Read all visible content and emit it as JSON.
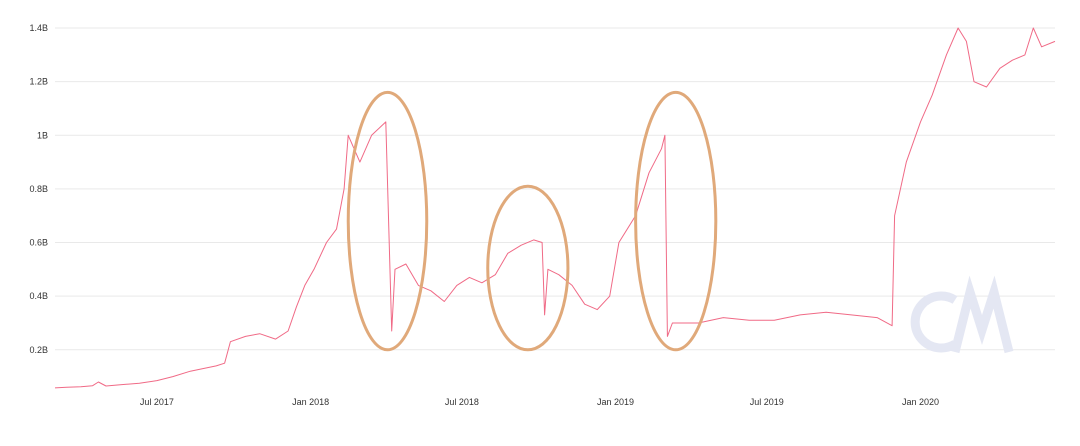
{
  "chart_data": {
    "type": "line",
    "title": "",
    "xlabel": "",
    "ylabel": "",
    "y_unit": "B",
    "ylim": [
      0.05,
      1.43
    ],
    "xlim": [
      "2017-03-01",
      "2020-06-10"
    ],
    "grid": "horizontal",
    "line_color": "#f06a86",
    "highlight_color": "#e0a97a",
    "watermark_color": "#e4e7f3",
    "watermark": "CM",
    "y_ticks": [
      {
        "value": 0.2,
        "label": "0.2B"
      },
      {
        "value": 0.4,
        "label": "0.4B"
      },
      {
        "value": 0.6,
        "label": "0.6B"
      },
      {
        "value": 0.8,
        "label": "0.8B"
      },
      {
        "value": 1.0,
        "label": "1B"
      },
      {
        "value": 1.2,
        "label": "1.2B"
      },
      {
        "value": 1.4,
        "label": "1.4B"
      }
    ],
    "x_ticks": [
      {
        "date": "2017-07-01",
        "label": "Jul 2017"
      },
      {
        "date": "2018-01-01",
        "label": "Jan 2018"
      },
      {
        "date": "2018-07-01",
        "label": "Jul 2018"
      },
      {
        "date": "2019-01-01",
        "label": "Jan 2019"
      },
      {
        "date": "2019-07-01",
        "label": "Jul 2019"
      },
      {
        "date": "2020-01-01",
        "label": "Jan 2020"
      }
    ],
    "series": [
      {
        "points": [
          [
            "2017-03-01",
            0.058
          ],
          [
            "2017-03-15",
            0.06
          ],
          [
            "2017-04-01",
            0.062
          ],
          [
            "2017-04-15",
            0.066
          ],
          [
            "2017-04-22",
            0.08
          ],
          [
            "2017-05-01",
            0.065
          ],
          [
            "2017-05-20",
            0.07
          ],
          [
            "2017-06-10",
            0.075
          ],
          [
            "2017-07-01",
            0.085
          ],
          [
            "2017-07-20",
            0.1
          ],
          [
            "2017-08-10",
            0.12
          ],
          [
            "2017-08-25",
            0.13
          ],
          [
            "2017-09-10",
            0.14
          ],
          [
            "2017-09-20",
            0.15
          ],
          [
            "2017-09-27",
            0.23
          ],
          [
            "2017-10-15",
            0.25
          ],
          [
            "2017-11-01",
            0.26
          ],
          [
            "2017-11-20",
            0.24
          ],
          [
            "2017-12-05",
            0.27
          ],
          [
            "2017-12-15",
            0.36
          ],
          [
            "2017-12-25",
            0.44
          ],
          [
            "2018-01-05",
            0.5
          ],
          [
            "2018-01-20",
            0.6
          ],
          [
            "2018-02-01",
            0.65
          ],
          [
            "2018-02-10",
            0.8
          ],
          [
            "2018-02-15",
            1.0
          ],
          [
            "2018-03-01",
            0.9
          ],
          [
            "2018-03-15",
            1.0
          ],
          [
            "2018-04-01",
            1.05
          ],
          [
            "2018-04-08",
            0.27
          ],
          [
            "2018-04-12",
            0.5
          ],
          [
            "2018-04-25",
            0.52
          ],
          [
            "2018-05-10",
            0.44
          ],
          [
            "2018-05-25",
            0.42
          ],
          [
            "2018-06-10",
            0.38
          ],
          [
            "2018-06-25",
            0.44
          ],
          [
            "2018-07-10",
            0.47
          ],
          [
            "2018-07-25",
            0.45
          ],
          [
            "2018-08-10",
            0.48
          ],
          [
            "2018-08-25",
            0.56
          ],
          [
            "2018-09-10",
            0.59
          ],
          [
            "2018-09-25",
            0.61
          ],
          [
            "2018-10-05",
            0.6
          ],
          [
            "2018-10-08",
            0.33
          ],
          [
            "2018-10-12",
            0.5
          ],
          [
            "2018-10-25",
            0.48
          ],
          [
            "2018-11-10",
            0.44
          ],
          [
            "2018-11-25",
            0.37
          ],
          [
            "2018-12-10",
            0.35
          ],
          [
            "2018-12-25",
            0.4
          ],
          [
            "2019-01-05",
            0.6
          ],
          [
            "2019-01-25",
            0.7
          ],
          [
            "2019-02-10",
            0.86
          ],
          [
            "2019-02-25",
            0.95
          ],
          [
            "2019-03-01",
            1.0
          ],
          [
            "2019-03-04",
            0.25
          ],
          [
            "2019-03-10",
            0.3
          ],
          [
            "2019-04-10",
            0.3
          ],
          [
            "2019-05-10",
            0.32
          ],
          [
            "2019-06-10",
            0.31
          ],
          [
            "2019-07-10",
            0.31
          ],
          [
            "2019-08-10",
            0.33
          ],
          [
            "2019-09-10",
            0.34
          ],
          [
            "2019-10-10",
            0.33
          ],
          [
            "2019-11-10",
            0.32
          ],
          [
            "2019-11-28",
            0.29
          ],
          [
            "2019-12-01",
            0.7
          ],
          [
            "2019-12-15",
            0.9
          ],
          [
            "2020-01-01",
            1.05
          ],
          [
            "2020-01-15",
            1.15
          ],
          [
            "2020-02-01",
            1.3
          ],
          [
            "2020-02-15",
            1.4
          ],
          [
            "2020-02-25",
            1.35
          ],
          [
            "2020-03-05",
            1.2
          ],
          [
            "2020-03-20",
            1.18
          ],
          [
            "2020-04-05",
            1.25
          ],
          [
            "2020-04-20",
            1.28
          ],
          [
            "2020-05-05",
            1.3
          ],
          [
            "2020-05-15",
            1.4
          ],
          [
            "2020-05-25",
            1.33
          ],
          [
            "2020-06-10",
            1.35
          ]
        ]
      }
    ],
    "highlights": [
      {
        "from": "2018-02-15",
        "to": "2018-05-20",
        "y_from": 0.2,
        "y_to": 1.16
      },
      {
        "from": "2018-08-01",
        "to": "2018-11-05",
        "y_from": 0.2,
        "y_to": 0.81
      },
      {
        "from": "2019-01-25",
        "to": "2019-05-01",
        "y_from": 0.2,
        "y_to": 1.16
      }
    ]
  }
}
